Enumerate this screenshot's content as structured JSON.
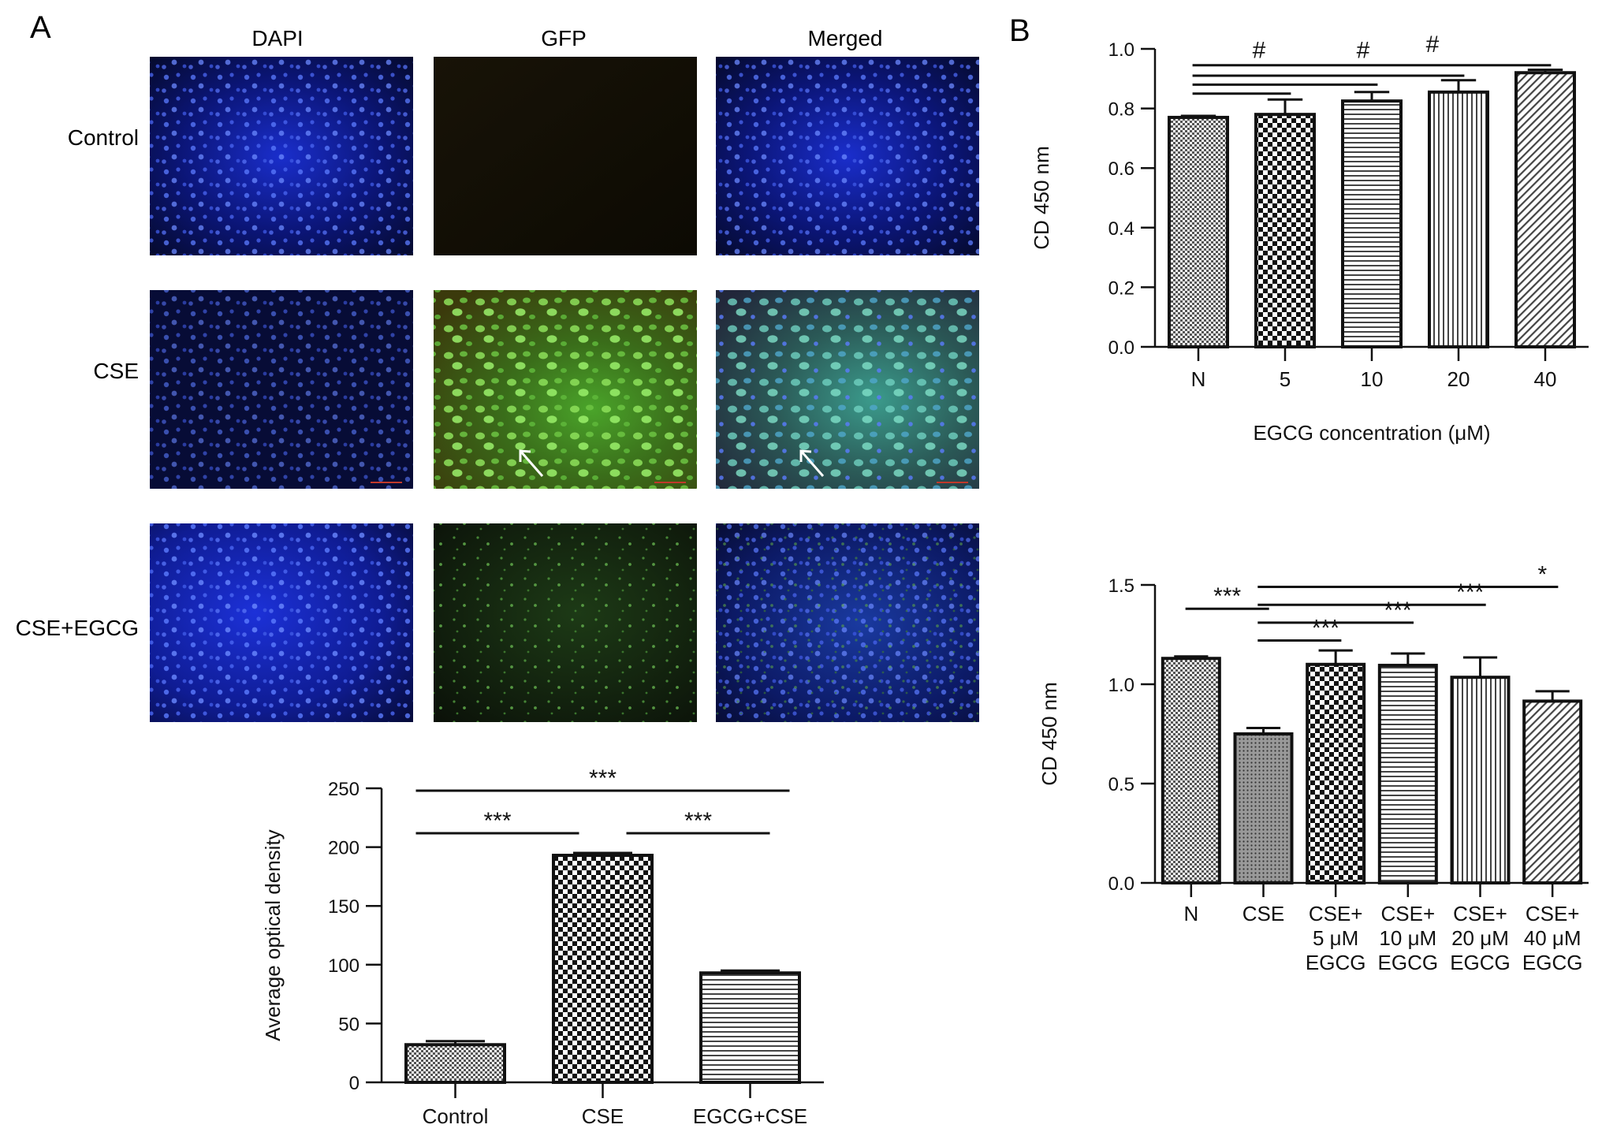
{
  "panel_labels": {
    "a": "A",
    "b": "B"
  },
  "micrographs": {
    "columns": [
      "DAPI",
      "GFP",
      "Merged"
    ],
    "rows": [
      "Control",
      "CSE",
      "CSE+EGCG"
    ]
  },
  "chart_data": [
    {
      "id": "chart-a",
      "type": "bar",
      "categories": [
        "Control",
        "CSE",
        "EGCG+CSE"
      ],
      "values": [
        32,
        193,
        93
      ],
      "errors": [
        3,
        2,
        2
      ],
      "patterns": [
        "fine-check",
        "check",
        "hlines"
      ],
      "ylabel": "Average optical density",
      "xlabel": "",
      "ylim": [
        0,
        250
      ],
      "yticks": [
        "0",
        "50",
        "100",
        "150",
        "200",
        "250"
      ],
      "annotations": [
        {
          "from": 0,
          "to": 2,
          "label": "***"
        },
        {
          "from": 0,
          "to": 1,
          "label": "***"
        },
        {
          "from": 1,
          "to": 2,
          "label": "***"
        }
      ]
    },
    {
      "id": "chart-b1",
      "type": "bar",
      "categories": [
        "N",
        "5",
        "10",
        "20",
        "40"
      ],
      "values": [
        0.77,
        0.78,
        0.825,
        0.855,
        0.92
      ],
      "errors": [
        0.005,
        0.05,
        0.03,
        0.04,
        0.01
      ],
      "patterns": [
        "fine-check",
        "check",
        "hlines",
        "vlines",
        "diag"
      ],
      "ylabel": "CD 450 nm",
      "xlabel": "EGCG concentration (μM)",
      "ylim": [
        0,
        1.0
      ],
      "yticks": [
        "0.0",
        "0.2",
        "0.4",
        "0.6",
        "0.8",
        "1.0"
      ],
      "annotations": [
        {
          "from": 0,
          "to": 4,
          "label": "",
          "y": 0.945
        },
        {
          "from": 0,
          "to": 3,
          "label": "",
          "y": 0.91
        },
        {
          "from": 0,
          "to": 2,
          "label": "",
          "y": 0.88
        },
        {
          "from": 0,
          "to": 1,
          "label": "",
          "y": 0.85
        }
      ],
      "markers": [
        {
          "label": "#",
          "at": 1.2,
          "y": 0.97
        },
        {
          "label": "#",
          "at": 2.4,
          "y": 0.97
        },
        {
          "label": "#",
          "at": 3.2,
          "y": 0.99
        }
      ]
    },
    {
      "id": "chart-b2",
      "type": "bar",
      "categories": [
        [
          "N"
        ],
        [
          "CSE"
        ],
        [
          "CSE+",
          "5 μM",
          "EGCG"
        ],
        [
          "CSE+",
          "10 μM",
          "EGCG"
        ],
        [
          "CSE+",
          "20 μM",
          "EGCG"
        ],
        [
          "CSE+",
          "40 μM",
          "EGCG"
        ]
      ],
      "values": [
        1.13,
        0.75,
        1.1,
        1.095,
        1.035,
        0.915
      ],
      "errors": [
        0.01,
        0.03,
        0.07,
        0.06,
        0.1,
        0.05
      ],
      "patterns": [
        "fine-check",
        "dots",
        "check",
        "hlines",
        "vlines",
        "diag"
      ],
      "ylabel": "CD 450 nm",
      "xlabel": "",
      "ylim": [
        0,
        1.5
      ],
      "yticks": [
        "0.0",
        "0.5",
        "1.0",
        "1.5"
      ],
      "annotations": [
        {
          "from": 0,
          "to": 1,
          "label": "***",
          "y": 1.38
        },
        {
          "from": 1,
          "to": 2,
          "label": "***",
          "y": 1.22
        },
        {
          "from": 1,
          "to": 3,
          "label": "***",
          "y": 1.31
        },
        {
          "from": 1,
          "to": 4,
          "label": "***",
          "y": 1.4
        },
        {
          "from": 1,
          "to": 5,
          "label": "*",
          "y": 1.49
        }
      ]
    }
  ]
}
